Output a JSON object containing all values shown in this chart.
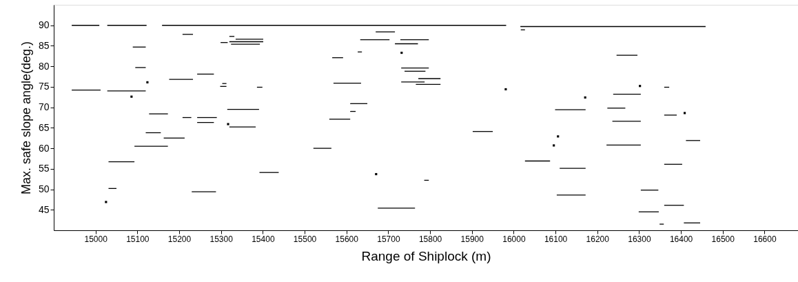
{
  "chart_data": {
    "type": "line",
    "xlabel": "Range of Shiplock (m)",
    "ylabel": "Max. safe slope angle(deg.)",
    "xlim": [
      14900,
      16680
    ],
    "xticks": [
      15000,
      15100,
      15200,
      15300,
      15400,
      15500,
      15600,
      15700,
      15800,
      15900,
      16000,
      16100,
      16200,
      16300,
      16400,
      16500,
      16600
    ],
    "ylim": [
      40,
      95
    ],
    "yticks": [
      45,
      50,
      55,
      60,
      65,
      70,
      75,
      80,
      85,
      90
    ],
    "grid": false,
    "line_style": "solid",
    "series": [
      {
        "color": "#000000",
        "x": [
          14943,
          15009
        ],
        "values": [
          90,
          90
        ]
      },
      {
        "color": "#000000",
        "x": [
          15028,
          15122
        ],
        "values": [
          90,
          90
        ]
      },
      {
        "color": "#000000",
        "x": [
          15159,
          15982
        ],
        "values": [
          90,
          90
        ]
      },
      {
        "color": "#000000",
        "x": [
          16016,
          16459
        ],
        "values": [
          89.7,
          89.7
        ]
      },
      {
        "color": "#000000",
        "x": [
          14943,
          15012
        ],
        "values": [
          74.2,
          74.2
        ]
      },
      {
        "color": "#000000",
        "x": [
          15028,
          15120
        ],
        "values": [
          74,
          74
        ]
      },
      {
        "color": "#000000",
        "x": [
          15089,
          15120
        ],
        "values": [
          84.7,
          84.7
        ]
      },
      {
        "color": "#000000",
        "x": [
          15095,
          15120
        ],
        "values": [
          79.7,
          79.7
        ]
      },
      {
        "color": "#000000",
        "x": [
          15128,
          15173
        ],
        "values": [
          68.4,
          68.4
        ]
      },
      {
        "color": "#000000",
        "x": [
          15120,
          15156
        ],
        "values": [
          63.8,
          63.8
        ]
      },
      {
        "color": "#000000",
        "x": [
          15163,
          15213
        ],
        "values": [
          62.5,
          62.5
        ]
      },
      {
        "color": "#000000",
        "x": [
          15093,
          15173
        ],
        "values": [
          60.5,
          60.5
        ]
      },
      {
        "color": "#000000",
        "x": [
          15031,
          15093
        ],
        "values": [
          56.7,
          56.7
        ]
      },
      {
        "color": "#000000",
        "x": [
          15031,
          15050
        ],
        "values": [
          50.2,
          50.2
        ]
      },
      {
        "color": "#000000",
        "x": [
          15208,
          15233
        ],
        "values": [
          87.8,
          87.8
        ]
      },
      {
        "color": "#000000",
        "x": [
          15176,
          15233
        ],
        "values": [
          76.8,
          76.8
        ]
      },
      {
        "color": "#000000",
        "x": [
          15208,
          15229
        ],
        "values": [
          67.5,
          67.5
        ]
      },
      {
        "color": "#000000",
        "x": [
          15243,
          15283
        ],
        "values": [
          78.1,
          78.1
        ]
      },
      {
        "color": "#000000",
        "x": [
          15243,
          15290
        ],
        "values": [
          67.5,
          67.5
        ]
      },
      {
        "color": "#000000",
        "x": [
          15243,
          15283
        ],
        "values": [
          66.3,
          66.3
        ]
      },
      {
        "color": "#000000",
        "x": [
          15230,
          15288
        ],
        "values": [
          49.4,
          49.4
        ]
      },
      {
        "color": "#000000",
        "x": [
          15299,
          15316
        ],
        "values": [
          85.8,
          85.8
        ]
      },
      {
        "color": "#000000",
        "x": [
          15320,
          15332
        ],
        "values": [
          87.3,
          87.3
        ]
      },
      {
        "color": "#000000",
        "x": [
          15335,
          15401
        ],
        "values": [
          86.6,
          86.6
        ]
      },
      {
        "color": "#000000",
        "x": [
          15320,
          15401
        ],
        "values": [
          86,
          86
        ]
      },
      {
        "color": "#000000",
        "x": [
          15324,
          15393
        ],
        "values": [
          85.4,
          85.4
        ]
      },
      {
        "color": "#000000",
        "x": [
          15298,
          15313
        ],
        "values": [
          75.1,
          75.1
        ]
      },
      {
        "color": "#000000",
        "x": [
          15303,
          15313
        ],
        "values": [
          75.8,
          75.8
        ]
      },
      {
        "color": "#000000",
        "x": [
          15386,
          15399
        ],
        "values": [
          74.9,
          74.9
        ]
      },
      {
        "color": "#000000",
        "x": [
          15315,
          15391
        ],
        "values": [
          69.5,
          69.5
        ]
      },
      {
        "color": "#000000",
        "x": [
          15320,
          15383
        ],
        "values": [
          65.2,
          65.2
        ]
      },
      {
        "color": "#000000",
        "x": [
          15392,
          15438
        ],
        "values": [
          54.1,
          54.1
        ]
      },
      {
        "color": "#000000",
        "x": [
          15670,
          15716
        ],
        "values": [
          88.4,
          88.4
        ]
      },
      {
        "color": "#000000",
        "x": [
          15633,
          15703
        ],
        "values": [
          86.5,
          86.5
        ]
      },
      {
        "color": "#000000",
        "x": [
          15729,
          15797
        ],
        "values": [
          86.5,
          86.5
        ]
      },
      {
        "color": "#000000",
        "x": [
          15716,
          15771
        ],
        "values": [
          85.5,
          85.5
        ]
      },
      {
        "color": "#000000",
        "x": [
          15627,
          15637
        ],
        "values": [
          83.5,
          83.5
        ]
      },
      {
        "color": "#000000",
        "x": [
          15566,
          15592
        ],
        "values": [
          82.1,
          82.1
        ]
      },
      {
        "color": "#000000",
        "x": [
          15731,
          15797
        ],
        "values": [
          79.6,
          79.6
        ]
      },
      {
        "color": "#000000",
        "x": [
          15739,
          15789
        ],
        "values": [
          78.8,
          78.8
        ]
      },
      {
        "color": "#000000",
        "x": [
          15772,
          15825
        ],
        "values": [
          77,
          77
        ]
      },
      {
        "color": "#000000",
        "x": [
          15731,
          15787
        ],
        "values": [
          76.2,
          76.2
        ]
      },
      {
        "color": "#000000",
        "x": [
          15766,
          15825
        ],
        "values": [
          75.6,
          75.6
        ]
      },
      {
        "color": "#000000",
        "x": [
          15569,
          15635
        ],
        "values": [
          75.9,
          75.9
        ]
      },
      {
        "color": "#000000",
        "x": [
          15609,
          15650
        ],
        "values": [
          70.9,
          70.9
        ]
      },
      {
        "color": "#000000",
        "x": [
          15609,
          15622
        ],
        "values": [
          69,
          69
        ]
      },
      {
        "color": "#000000",
        "x": [
          15559,
          15609
        ],
        "values": [
          67.1,
          67.1
        ]
      },
      {
        "color": "#000000",
        "x": [
          15902,
          15950
        ],
        "values": [
          64.1,
          64.1
        ]
      },
      {
        "color": "#000000",
        "x": [
          15521,
          15564
        ],
        "values": [
          60,
          60
        ]
      },
      {
        "color": "#000000",
        "x": [
          15786,
          15797
        ],
        "values": [
          52.2,
          52.2
        ]
      },
      {
        "color": "#000000",
        "x": [
          15675,
          15764
        ],
        "values": [
          45.4,
          45.4
        ]
      },
      {
        "color": "#000000",
        "x": [
          16027,
          16087
        ],
        "values": [
          56.9,
          56.9
        ]
      },
      {
        "color": "#000000",
        "x": [
          16017,
          16027
        ],
        "values": [
          88.9,
          88.9
        ]
      },
      {
        "color": "#000000",
        "x": [
          16246,
          16296
        ],
        "values": [
          82.7,
          82.7
        ]
      },
      {
        "color": "#000000",
        "x": [
          16360,
          16372
        ],
        "values": [
          74.9,
          74.9
        ]
      },
      {
        "color": "#000000",
        "x": [
          16238,
          16304
        ],
        "values": [
          73.2,
          73.2
        ]
      },
      {
        "color": "#000000",
        "x": [
          16099,
          16172
        ],
        "values": [
          69.4,
          69.4
        ]
      },
      {
        "color": "#000000",
        "x": [
          16224,
          16267
        ],
        "values": [
          69.8,
          69.8
        ]
      },
      {
        "color": "#000000",
        "x": [
          16360,
          16390
        ],
        "values": [
          68.1,
          68.1
        ]
      },
      {
        "color": "#000000",
        "x": [
          16236,
          16304
        ],
        "values": [
          66.6,
          66.6
        ]
      },
      {
        "color": "#000000",
        "x": [
          16412,
          16446
        ],
        "values": [
          61.9,
          61.9
        ]
      },
      {
        "color": "#000000",
        "x": [
          16222,
          16304
        ],
        "values": [
          60.8,
          60.8
        ]
      },
      {
        "color": "#000000",
        "x": [
          16110,
          16172
        ],
        "values": [
          55.1,
          55.1
        ]
      },
      {
        "color": "#000000",
        "x": [
          16360,
          16403
        ],
        "values": [
          56.1,
          56.1
        ]
      },
      {
        "color": "#000000",
        "x": [
          16103,
          16172
        ],
        "values": [
          48.6,
          48.6
        ]
      },
      {
        "color": "#000000",
        "x": [
          16304,
          16346
        ],
        "values": [
          49.8,
          49.8
        ]
      },
      {
        "color": "#000000",
        "x": [
          16360,
          16407
        ],
        "values": [
          46.1,
          46.1
        ]
      },
      {
        "color": "#000000",
        "x": [
          16299,
          16347
        ],
        "values": [
          44.5,
          44.5
        ]
      },
      {
        "color": "#000000",
        "x": [
          16349,
          16359
        ],
        "values": [
          41.5,
          41.5
        ]
      },
      {
        "color": "#000000",
        "x": [
          16407,
          16446
        ],
        "values": [
          41.8,
          41.8
        ]
      },
      {
        "type": "scatter",
        "marker": "square",
        "color": "#000000",
        "x": [
          15124,
          15086,
          15025,
          15317,
          15732,
          15981,
          15671,
          16302,
          16171,
          16409,
          16106,
          16096
        ],
        "values": [
          76.1,
          72.6,
          46.9,
          65.9,
          83.3,
          74.4,
          53.7,
          75.2,
          72.4,
          68.6,
          62.9,
          60.7
        ]
      }
    ]
  }
}
